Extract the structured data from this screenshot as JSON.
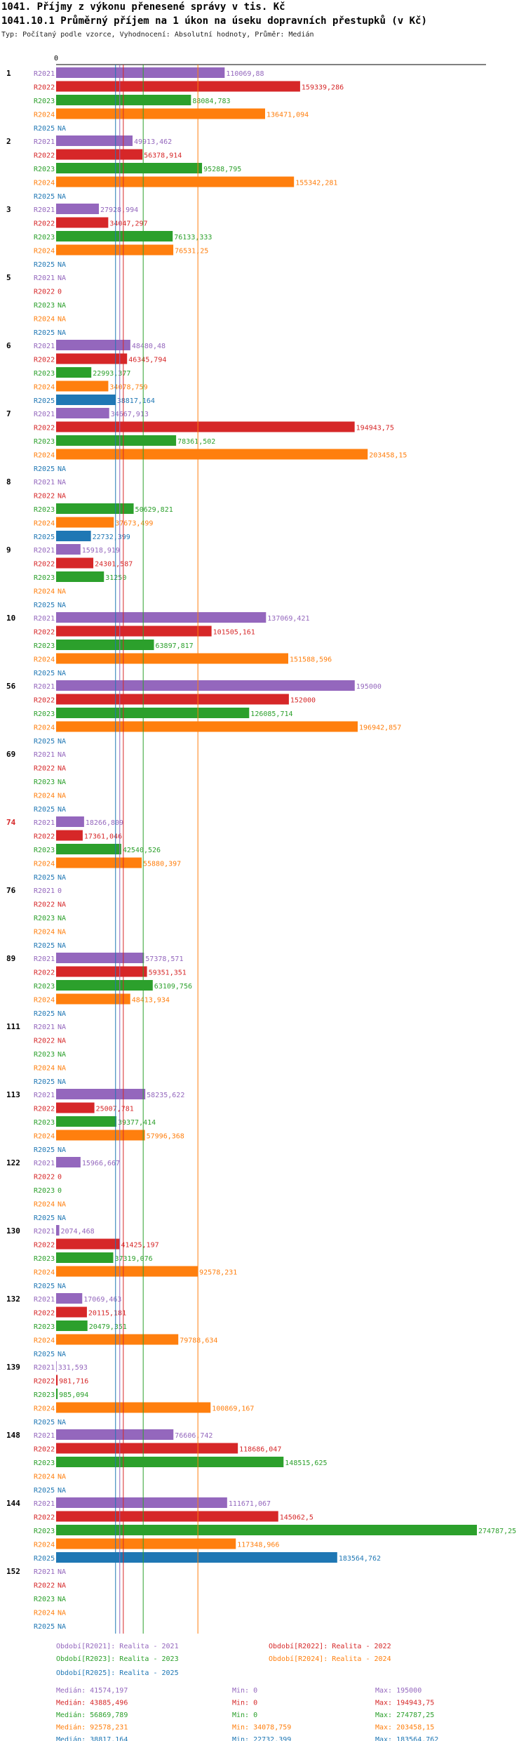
{
  "header": {
    "title": "1041. Příjmy z výkonu přenesené správy v tis. Kč",
    "subtitle": "1041.10.1 Průměrný příjem na 1 úkon na úseku dopravních přestupků (v Kč)",
    "info": "Typ: Počítaný podle vzorce, Vyhodnocení: Absolutní hodnoty, Průměr: Medián"
  },
  "chart_data": {
    "type": "bar",
    "orientation": "horizontal",
    "title": "1041.10.1 Průměrný příjem na 1 úkon na úseku dopravních přestupků (v Kč)",
    "axis_zero_label": "0",
    "xlim": [
      0,
      274787.25
    ],
    "series": [
      {
        "key": "R2021",
        "name": "Období[R2021]: Realita - 2021",
        "color": "#9467bd"
      },
      {
        "key": "R2022",
        "name": "Období[R2022]: Realita - 2022",
        "color": "#d62728"
      },
      {
        "key": "R2023",
        "name": "Období[R2023]: Realita - 2023",
        "color": "#2ca02c"
      },
      {
        "key": "R2024",
        "name": "Období[R2024]: Realita - 2024",
        "color": "#ff7f0e"
      },
      {
        "key": "R2025",
        "name": "Období[R2025]: Realita - 2025",
        "color": "#1f77b4"
      }
    ],
    "groups": [
      {
        "label": "1",
        "highlight": false,
        "values": [
          "110069,88",
          "159339,286",
          "88084,783",
          "136471,094",
          "NA"
        ]
      },
      {
        "label": "2",
        "highlight": false,
        "values": [
          "49913,462",
          "56378,914",
          "95288,795",
          "155342,281",
          "NA"
        ]
      },
      {
        "label": "3",
        "highlight": false,
        "values": [
          "27928,994",
          "34047,297",
          "76133,333",
          "76531,25",
          "NA"
        ]
      },
      {
        "label": "5",
        "highlight": false,
        "values": [
          "NA",
          "0",
          "NA",
          "NA",
          "NA"
        ]
      },
      {
        "label": "6",
        "highlight": false,
        "values": [
          "48480,48",
          "46345,794",
          "22993,377",
          "34078,759",
          "38817,164"
        ]
      },
      {
        "label": "7",
        "highlight": false,
        "values": [
          "34667,913",
          "194943,75",
          "78361,502",
          "203458,15",
          "NA"
        ]
      },
      {
        "label": "8",
        "highlight": false,
        "values": [
          "NA",
          "NA",
          "50629,821",
          "37673,499",
          "22732,399"
        ]
      },
      {
        "label": "9",
        "highlight": false,
        "values": [
          "15918,919",
          "24301,587",
          "31250",
          "NA",
          "NA"
        ]
      },
      {
        "label": "10",
        "highlight": false,
        "values": [
          "137069,421",
          "101505,161",
          "63897,817",
          "151588,596",
          "NA"
        ]
      },
      {
        "label": "56",
        "highlight": false,
        "values": [
          "195000",
          "152000",
          "126085,714",
          "196942,857",
          "NA"
        ]
      },
      {
        "label": "69",
        "highlight": false,
        "values": [
          "NA",
          "NA",
          "NA",
          "NA",
          "NA"
        ]
      },
      {
        "label": "74",
        "highlight": true,
        "values": [
          "18266,809",
          "17361,046",
          "42540,526",
          "55880,397",
          "NA"
        ]
      },
      {
        "label": "76",
        "highlight": false,
        "values": [
          "0",
          "NA",
          "NA",
          "NA",
          "NA"
        ]
      },
      {
        "label": "89",
        "highlight": false,
        "values": [
          "57378,571",
          "59351,351",
          "63109,756",
          "48413,934",
          "NA"
        ]
      },
      {
        "label": "111",
        "highlight": false,
        "values": [
          "NA",
          "NA",
          "NA",
          "NA",
          "NA"
        ]
      },
      {
        "label": "113",
        "highlight": false,
        "values": [
          "58235,622",
          "25007,781",
          "39377,414",
          "57996,368",
          "NA"
        ]
      },
      {
        "label": "122",
        "highlight": false,
        "values": [
          "15966,667",
          "0",
          "0",
          "NA",
          "NA"
        ]
      },
      {
        "label": "130",
        "highlight": false,
        "values": [
          "2074,468",
          "41425,197",
          "37319,076",
          "92578,231",
          "NA"
        ]
      },
      {
        "label": "132",
        "highlight": false,
        "values": [
          "17069,463",
          "20115,181",
          "20479,351",
          "79788,634",
          "NA"
        ]
      },
      {
        "label": "139",
        "highlight": false,
        "values": [
          "331,593",
          "981,716",
          "985,094",
          "100869,167",
          "NA"
        ]
      },
      {
        "label": "148",
        "highlight": false,
        "values": [
          "76606,742",
          "118686,047",
          "148515,625",
          "NA",
          "NA"
        ]
      },
      {
        "label": "144",
        "highlight": false,
        "values": [
          "111671,067",
          "145062,5",
          "274787,25",
          "117348,966",
          "183564,762"
        ]
      },
      {
        "label": "152",
        "highlight": false,
        "values": [
          "NA",
          "NA",
          "NA",
          "NA",
          "NA"
        ]
      }
    ],
    "stats": [
      {
        "key": "R2021",
        "median": "Medián: 41574,197",
        "min": "Min: 0",
        "max": "Max: 195000",
        "median_value": 41574.197
      },
      {
        "key": "R2022",
        "median": "Medián: 43885,496",
        "min": "Min: 0",
        "max": "Max: 194943,75",
        "median_value": 43885.496
      },
      {
        "key": "R2023",
        "median": "Medián: 56869,789",
        "min": "Min: 0",
        "max": "Max: 274787,25",
        "median_value": 56869.789
      },
      {
        "key": "R2024",
        "median": "Medián: 92578,231",
        "min": "Min: 34078,759",
        "max": "Max: 203458,15",
        "median_value": 92578.231
      },
      {
        "key": "R2025",
        "median": "Medián: 38817,164",
        "min": "Min: 22732,399",
        "max": "Max: 183564,762",
        "median_value": 38817.164
      }
    ]
  }
}
